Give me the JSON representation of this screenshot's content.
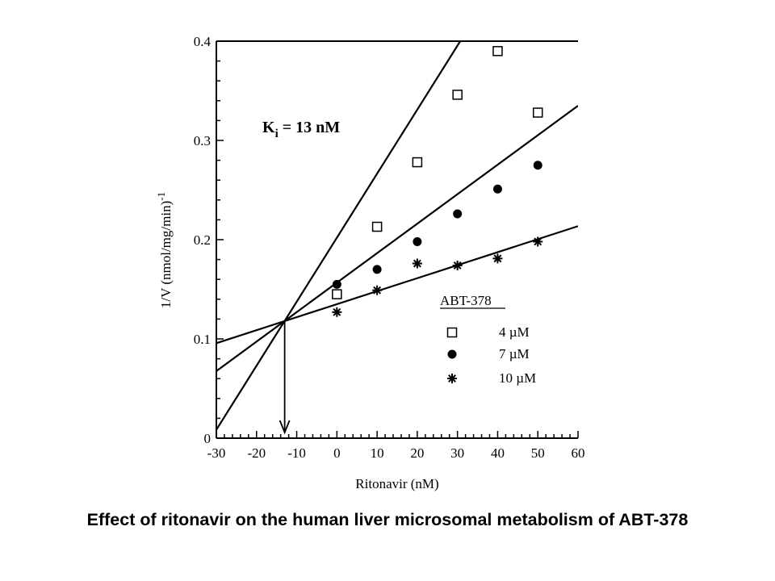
{
  "caption": "Effect of ritonavir on the human liver microsomal metabolism of ABT-378",
  "chart_data": {
    "type": "scatter",
    "xlabel": "Ritonavir (nM)",
    "ylabel": "1/V (nmol/mg/min)",
    "ylabel_superscript": "-1",
    "xlim": [
      -30,
      60
    ],
    "ylim": [
      0,
      0.4
    ],
    "x_ticks": [
      -30,
      -20,
      -10,
      0,
      10,
      20,
      30,
      40,
      50,
      60
    ],
    "y_ticks": [
      0,
      0.1,
      0.2,
      0.3,
      0.4
    ],
    "y_tick_labels": [
      "0",
      "0.1",
      "0.2",
      "0.3",
      "0.4"
    ],
    "grid": false,
    "legend_position": "lower-right",
    "legend_title": "ABT-378",
    "annotation": {
      "k_main": "K",
      "k_sub": "i",
      "k_rest": " = 13 nM"
    },
    "intersection": {
      "x": -13,
      "y": 0.118
    },
    "series": [
      {
        "name": "4 µM",
        "marker": "open-square",
        "x": [
          0,
          10,
          20,
          30,
          40,
          50
        ],
        "y": [
          0.145,
          0.213,
          0.278,
          0.346,
          0.39,
          0.328
        ],
        "fit": {
          "slope": 0.00645,
          "intercept": 0.202
        }
      },
      {
        "name": "7 µM",
        "marker": "filled-circle",
        "x": [
          0,
          10,
          20,
          30,
          40,
          50
        ],
        "y": [
          0.155,
          0.17,
          0.198,
          0.226,
          0.251,
          0.275
        ],
        "fit": {
          "slope": 0.00297,
          "intercept": 0.1567
        }
      },
      {
        "name": "10 µM",
        "marker": "asterisk",
        "x": [
          0,
          10,
          20,
          30,
          40,
          50
        ],
        "y": [
          0.127,
          0.149,
          0.176,
          0.174,
          0.181,
          0.198
        ],
        "fit": {
          "slope": 0.00131,
          "intercept": 0.135
        }
      }
    ]
  }
}
